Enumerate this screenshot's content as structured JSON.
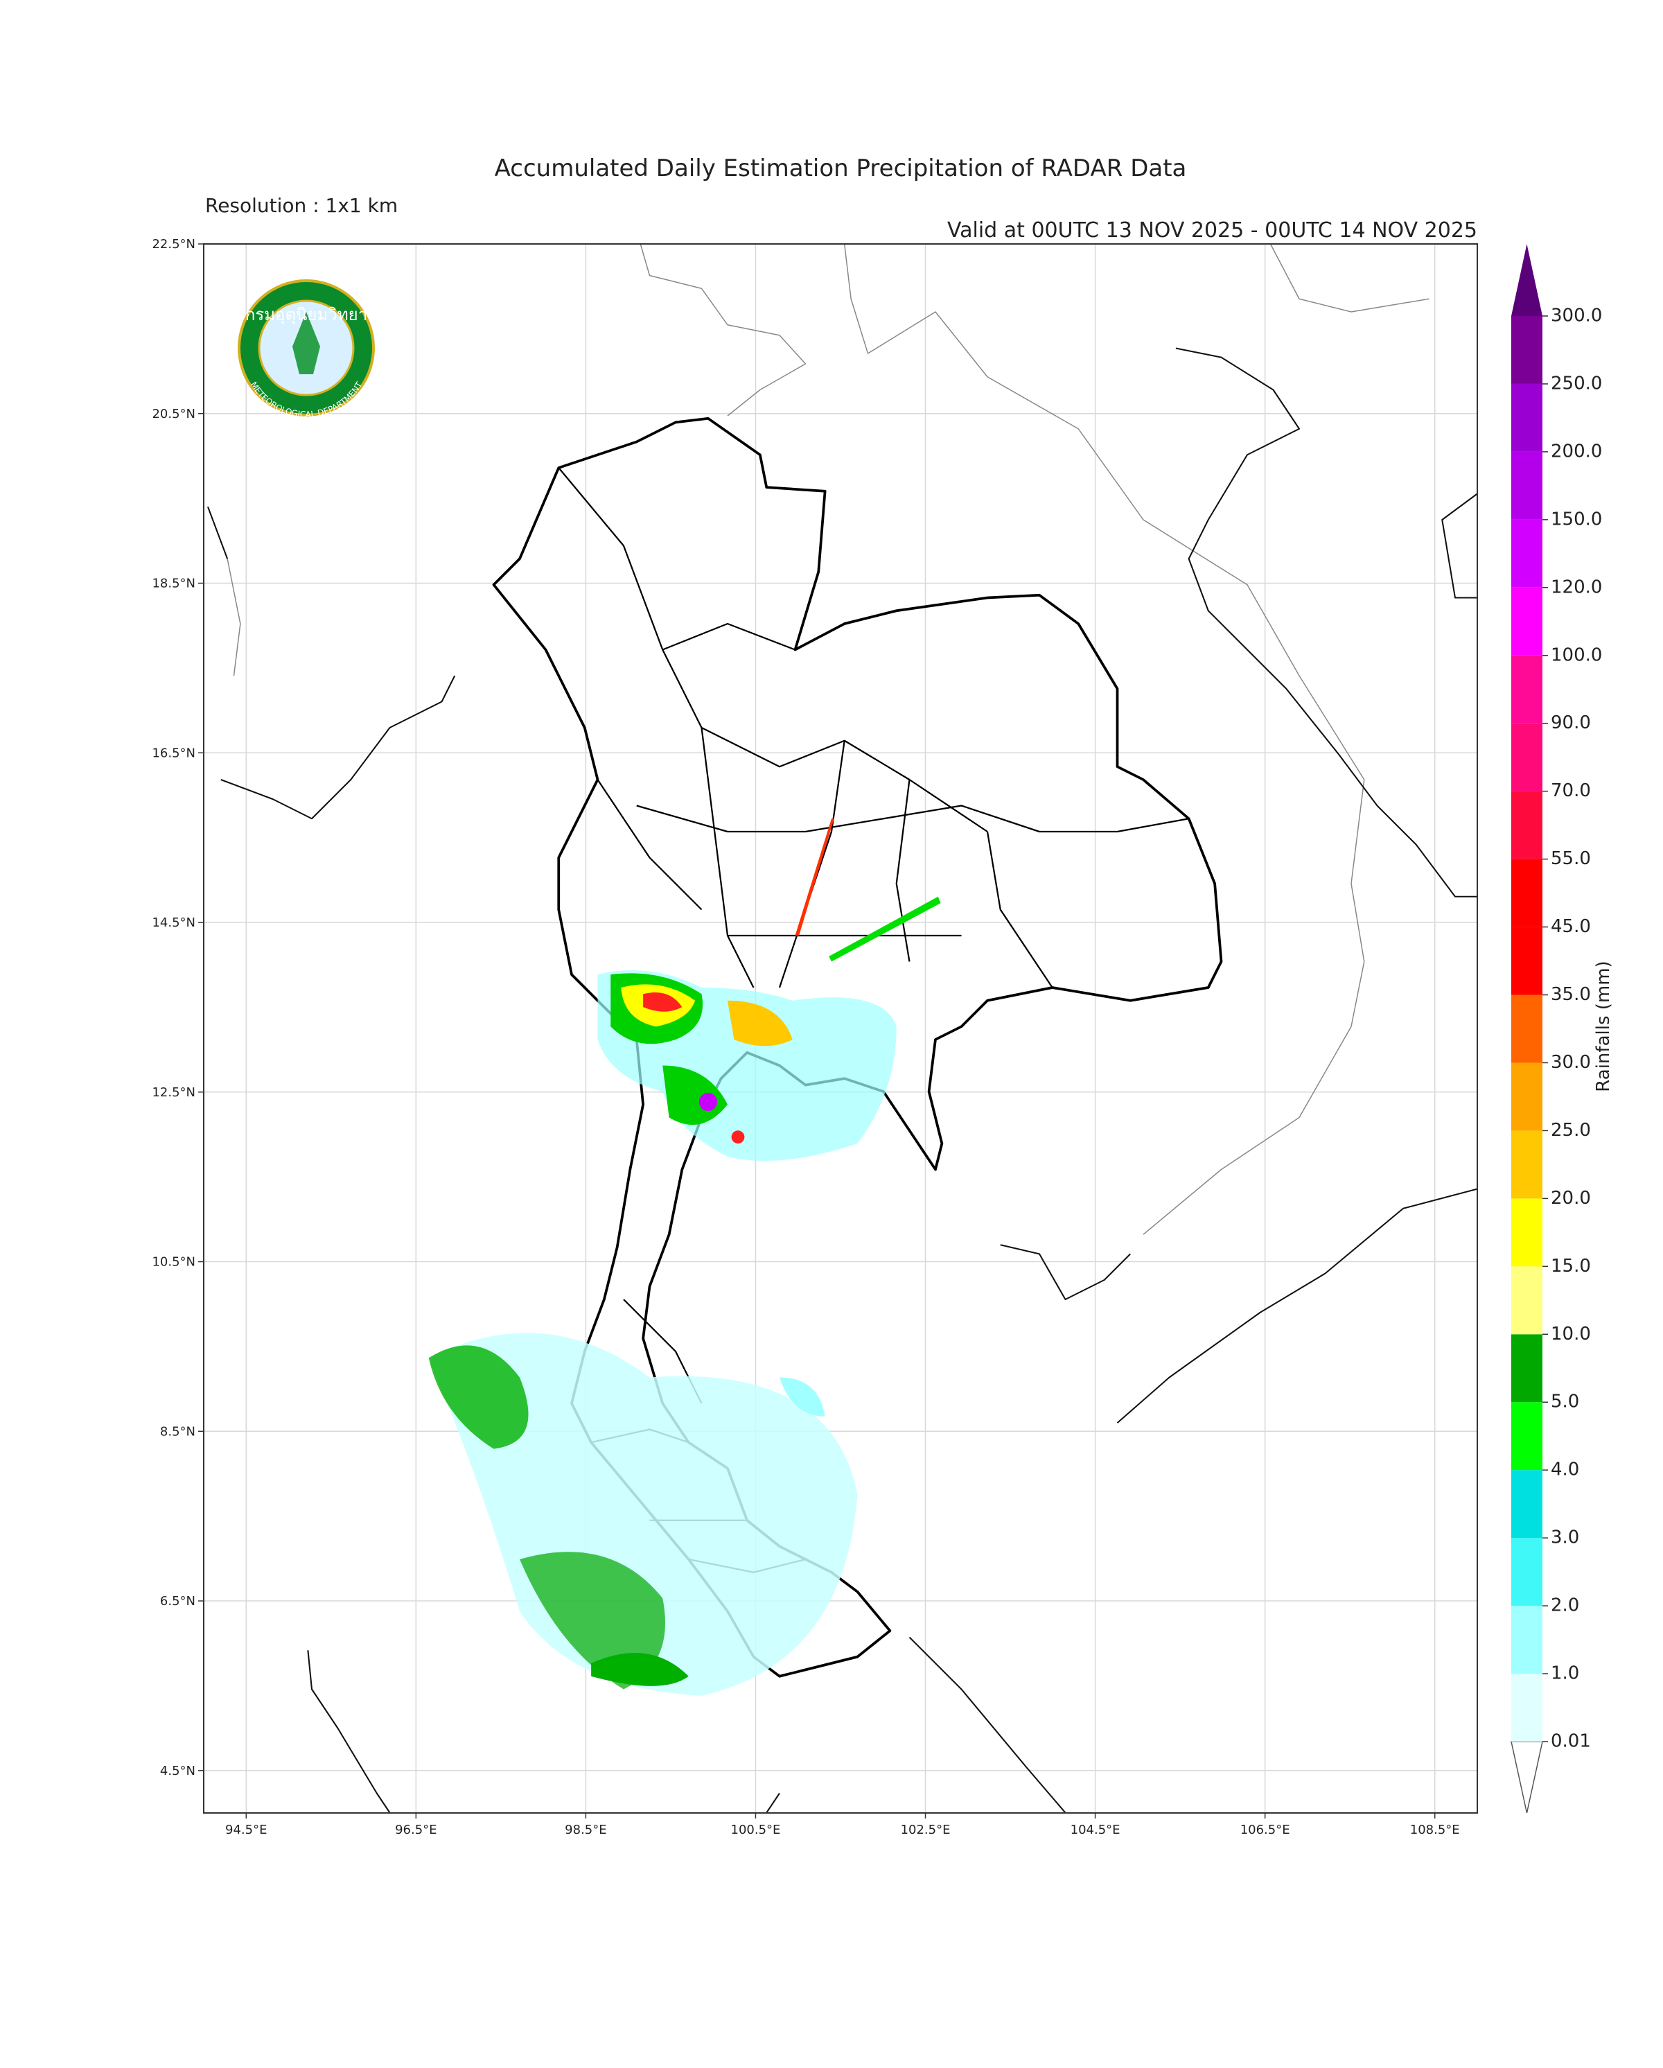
{
  "map": {
    "title": "Accumulated Daily Estimation Precipitation of RADAR Data",
    "subtitle": "Resolution : 1x1 km",
    "valid": "Valid at 00UTC 13 NOV 2025 - 00UTC 14 NOV 2025",
    "xlim": [
      94,
      109
    ],
    "ylim": [
      4,
      22.5
    ],
    "xticks": [
      {
        "value": 94.5,
        "label": "94.5°E"
      },
      {
        "value": 96.5,
        "label": "96.5°E"
      },
      {
        "value": 98.5,
        "label": "98.5°E"
      },
      {
        "value": 100.5,
        "label": "100.5°E"
      },
      {
        "value": 102.5,
        "label": "102.5°E"
      },
      {
        "value": 104.5,
        "label": "104.5°E"
      },
      {
        "value": 106.5,
        "label": "106.5°E"
      },
      {
        "value": 108.5,
        "label": "108.5°E"
      }
    ],
    "yticks": [
      {
        "value": 4.5,
        "label": "4.5°N"
      },
      {
        "value": 6.5,
        "label": "6.5°N"
      },
      {
        "value": 8.5,
        "label": "8.5°N"
      },
      {
        "value": 10.5,
        "label": "10.5°N"
      },
      {
        "value": 12.5,
        "label": "12.5°N"
      },
      {
        "value": 14.5,
        "label": "14.5°N"
      },
      {
        "value": 16.5,
        "label": "16.5°N"
      },
      {
        "value": 18.5,
        "label": "18.5°N"
      },
      {
        "value": 20.5,
        "label": "20.5°N"
      },
      {
        "value": 22.5,
        "label": "22.5°N"
      }
    ],
    "grid": true
  },
  "colorbar": {
    "label": "Rainfalls (mm)",
    "levels": [
      0.01,
      {
        "value": 1,
        "label": "1.0"
      },
      {
        "value": 2,
        "label": "2.0"
      },
      {
        "value": 3,
        "label": "3.0"
      },
      {
        "value": 4,
        "label": "4.0"
      },
      {
        "value": 5,
        "label": "5.0"
      },
      {
        "value": 10,
        "label": "10.0"
      },
      {
        "value": 15,
        "label": "15.0"
      },
      {
        "value": 20,
        "label": "20.0"
      },
      {
        "value": 25,
        "label": "25.0"
      },
      {
        "value": 30,
        "label": "30.0"
      },
      {
        "value": 35,
        "label": "35.0"
      },
      {
        "value": 45,
        "label": "45.0"
      },
      {
        "value": 55,
        "label": "55.0"
      },
      {
        "value": 70,
        "label": "70.0"
      },
      {
        "value": 90,
        "label": "90.0"
      },
      {
        "value": 100,
        "label": "100.0"
      },
      {
        "value": 120,
        "label": "120.0"
      },
      {
        "value": 150,
        "label": "150.0"
      },
      {
        "value": 200,
        "label": "200.0"
      },
      {
        "value": 250,
        "label": "250.0"
      },
      {
        "value": 300,
        "label": "300.0"
      }
    ],
    "colors": [
      "#e0ffff",
      "#a0ffff",
      "#40f8f8",
      "#00e0e0",
      "#00ff00",
      "#00a800",
      "#ffff80",
      "#ffff00",
      "#ffc800",
      "#ffa500",
      "#ff6400",
      "#ff0000",
      "#ff0000",
      "#ff0a3c",
      "#ff0a78",
      "#ff0a96",
      "#ff00ff",
      "#d200ff",
      "#b400ea",
      "#9b00d2",
      "#7a0096"
    ],
    "over_color": "#5a0078"
  },
  "logo": {
    "thai_text": "กรมอุตุนิยมวิทยา",
    "english_text": "METEOROLOGICAL DEPARTMENT"
  }
}
